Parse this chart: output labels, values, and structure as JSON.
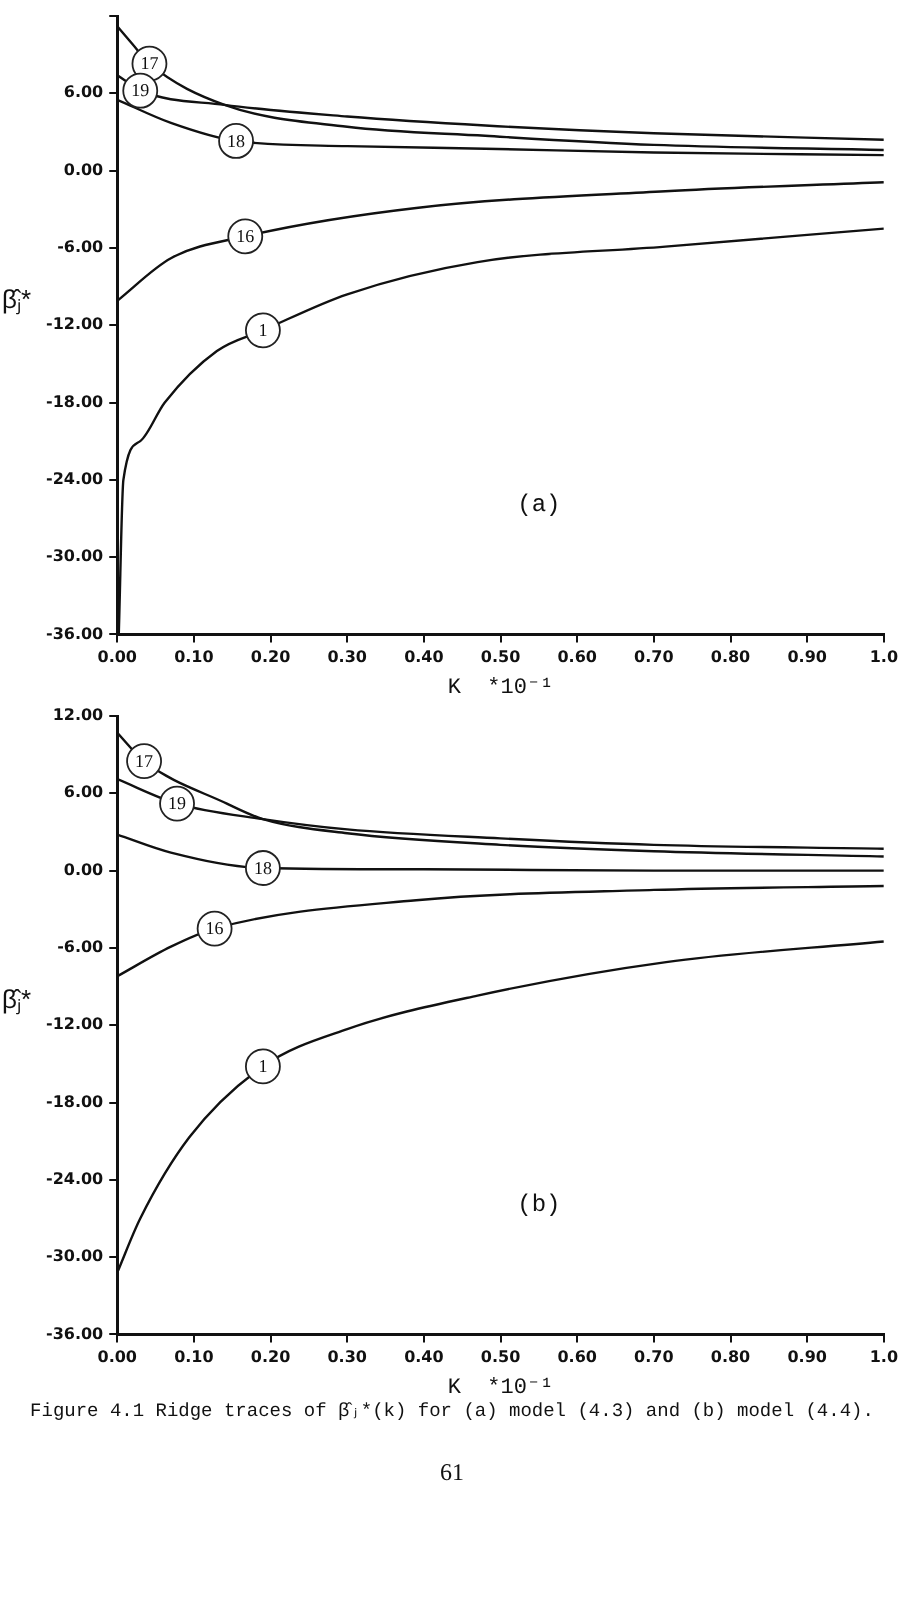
{
  "chart_data": [
    {
      "type": "line",
      "xlabel": "K  *10⁻¹",
      "ylabel": "β̂ⱼ*",
      "annotations": [
        "(a)"
      ],
      "xlim": [
        0,
        1
      ],
      "xticks": [
        {
          "value": 0,
          "label": "0.00"
        },
        {
          "value": 0.1,
          "label": "0.10"
        },
        {
          "value": 0.2,
          "label": "0.20"
        },
        {
          "value": 0.3,
          "label": "0.30"
        },
        {
          "value": 0.4,
          "label": "0.40"
        },
        {
          "value": 0.5,
          "label": "0.50"
        },
        {
          "value": 0.6,
          "label": "0.60"
        },
        {
          "value": 0.7,
          "label": "0.70"
        },
        {
          "value": 0.8,
          "label": "0.80"
        },
        {
          "value": 0.9,
          "label": "0.90"
        },
        {
          "value": 1,
          "label": "1.0"
        }
      ],
      "ylim": [
        -36,
        12
      ],
      "yticks": [
        {
          "value": -36,
          "label": "-36.00"
        },
        {
          "value": -30,
          "label": "-30.00"
        },
        {
          "value": -24,
          "label": "-24.00"
        },
        {
          "value": -18,
          "label": "-18.00"
        },
        {
          "value": -12,
          "label": "-12.00"
        },
        {
          "value": -6,
          "label": "-6.00"
        },
        {
          "value": 0,
          "label": "0.00"
        },
        {
          "value": 6,
          "label": "6.00"
        },
        {
          "value": 12,
          "label": null
        }
      ],
      "grid": false,
      "legend": false,
      "series": [
        {
          "name": "17",
          "color": "#111111",
          "x": [
            0,
            0.02,
            0.042,
            0.14,
            0.3,
            0.48,
            0.7,
            1.0
          ],
          "values": [
            11.2,
            9.8,
            8.3,
            5.1,
            3.4,
            2.7,
            2.0,
            1.6
          ]
        },
        {
          "name": "19",
          "color": "#111111",
          "x": [
            0,
            0.015,
            0.03,
            0.14,
            0.3,
            0.48,
            0.7,
            1.0
          ],
          "values": [
            7.4,
            6.8,
            6.2,
            5.1,
            4.2,
            3.5,
            2.9,
            2.4
          ]
        },
        {
          "name": "18",
          "color": "#111111",
          "x": [
            0,
            0.07,
            0.155,
            0.3,
            0.48,
            0.7,
            1.0
          ],
          "values": [
            5.5,
            3.7,
            2.3,
            1.9,
            1.7,
            1.4,
            1.2
          ]
        },
        {
          "name": "16",
          "color": "#111111",
          "x": [
            0,
            0.07,
            0.167,
            0.39,
            0.715,
            1.0
          ],
          "values": [
            -10.1,
            -6.8,
            -5.1,
            -2.9,
            -1.6,
            -0.9
          ]
        },
        {
          "name": "1",
          "color": "#111111",
          "x": [
            0.002,
            0.008,
            0.03,
            0.062,
            0.13,
            0.19,
            0.3,
            0.47,
            0.715,
            1.0
          ],
          "values": [
            -36,
            -24,
            -21,
            -18,
            -14,
            -12.4,
            -9.6,
            -7.1,
            -5.9,
            -4.5
          ]
        }
      ]
    },
    {
      "type": "line",
      "xlabel": "K  *10⁻¹",
      "ylabel": "β̂ⱼ*",
      "annotations": [
        "(b)",
        "Figure 4.1  Ridge traces of β̂ⱼ*(k) for (a) model (4.3) and (b) model (4.4).",
        "61"
      ],
      "xlim": [
        0,
        1
      ],
      "xticks": [
        {
          "value": 0,
          "label": "0.00"
        },
        {
          "value": 0.1,
          "label": "0.10"
        },
        {
          "value": 0.2,
          "label": "0.20"
        },
        {
          "value": 0.3,
          "label": "0.30"
        },
        {
          "value": 0.4,
          "label": "0.40"
        },
        {
          "value": 0.5,
          "label": "0.50"
        },
        {
          "value": 0.6,
          "label": "0.60"
        },
        {
          "value": 0.7,
          "label": "0.70"
        },
        {
          "value": 0.8,
          "label": "0.80"
        },
        {
          "value": 0.9,
          "label": "0.90"
        },
        {
          "value": 1,
          "label": "1.0"
        }
      ],
      "ylim": [
        -36,
        12
      ],
      "yticks": [
        {
          "value": -36,
          "label": "-36.00"
        },
        {
          "value": -30,
          "label": "-30.00"
        },
        {
          "value": -24,
          "label": "-24.00"
        },
        {
          "value": -18,
          "label": "-18.00"
        },
        {
          "value": -12,
          "label": "-12.00"
        },
        {
          "value": -6,
          "label": "-6.00"
        },
        {
          "value": 0,
          "label": "0.00"
        },
        {
          "value": 6,
          "label": "6.00"
        },
        {
          "value": 12,
          "label": "12.00"
        }
      ],
      "grid": false,
      "legend": false,
      "series": [
        {
          "name": "17",
          "color": "#111111",
          "x": [
            0,
            0.035,
            0.143,
            0.19,
            0.3,
            0.5,
            0.7,
            1.0
          ],
          "values": [
            10.7,
            8.5,
            5.2,
            4.0,
            2.9,
            2.0,
            1.5,
            1.1
          ]
        },
        {
          "name": "19",
          "color": "#111111",
          "x": [
            0,
            0.078,
            0.19,
            0.3,
            0.5,
            0.7,
            1.0
          ],
          "values": [
            7.1,
            5.2,
            4.0,
            3.2,
            2.5,
            2.0,
            1.7
          ]
        },
        {
          "name": "18",
          "color": "#111111",
          "x": [
            0,
            0.07,
            0.19,
            0.4,
            0.7,
            1.0
          ],
          "values": [
            2.8,
            1.4,
            0.2,
            0.1,
            0,
            0
          ]
        },
        {
          "name": "16",
          "color": "#111111",
          "x": [
            0,
            0.07,
            0.127,
            0.39,
            0.7,
            1.0
          ],
          "values": [
            -8.2,
            -5.9,
            -4.5,
            -2.3,
            -1.5,
            -1.2
          ]
        },
        {
          "name": "1",
          "color": "#111111",
          "x": [
            0,
            0.03,
            0.094,
            0.19,
            0.3,
            0.47,
            0.716,
            1.0
          ],
          "values": [
            -31.2,
            -27,
            -20.7,
            -15.2,
            -12.3,
            -9.7,
            -7.1,
            -5.5
          ]
        }
      ]
    }
  ]
}
